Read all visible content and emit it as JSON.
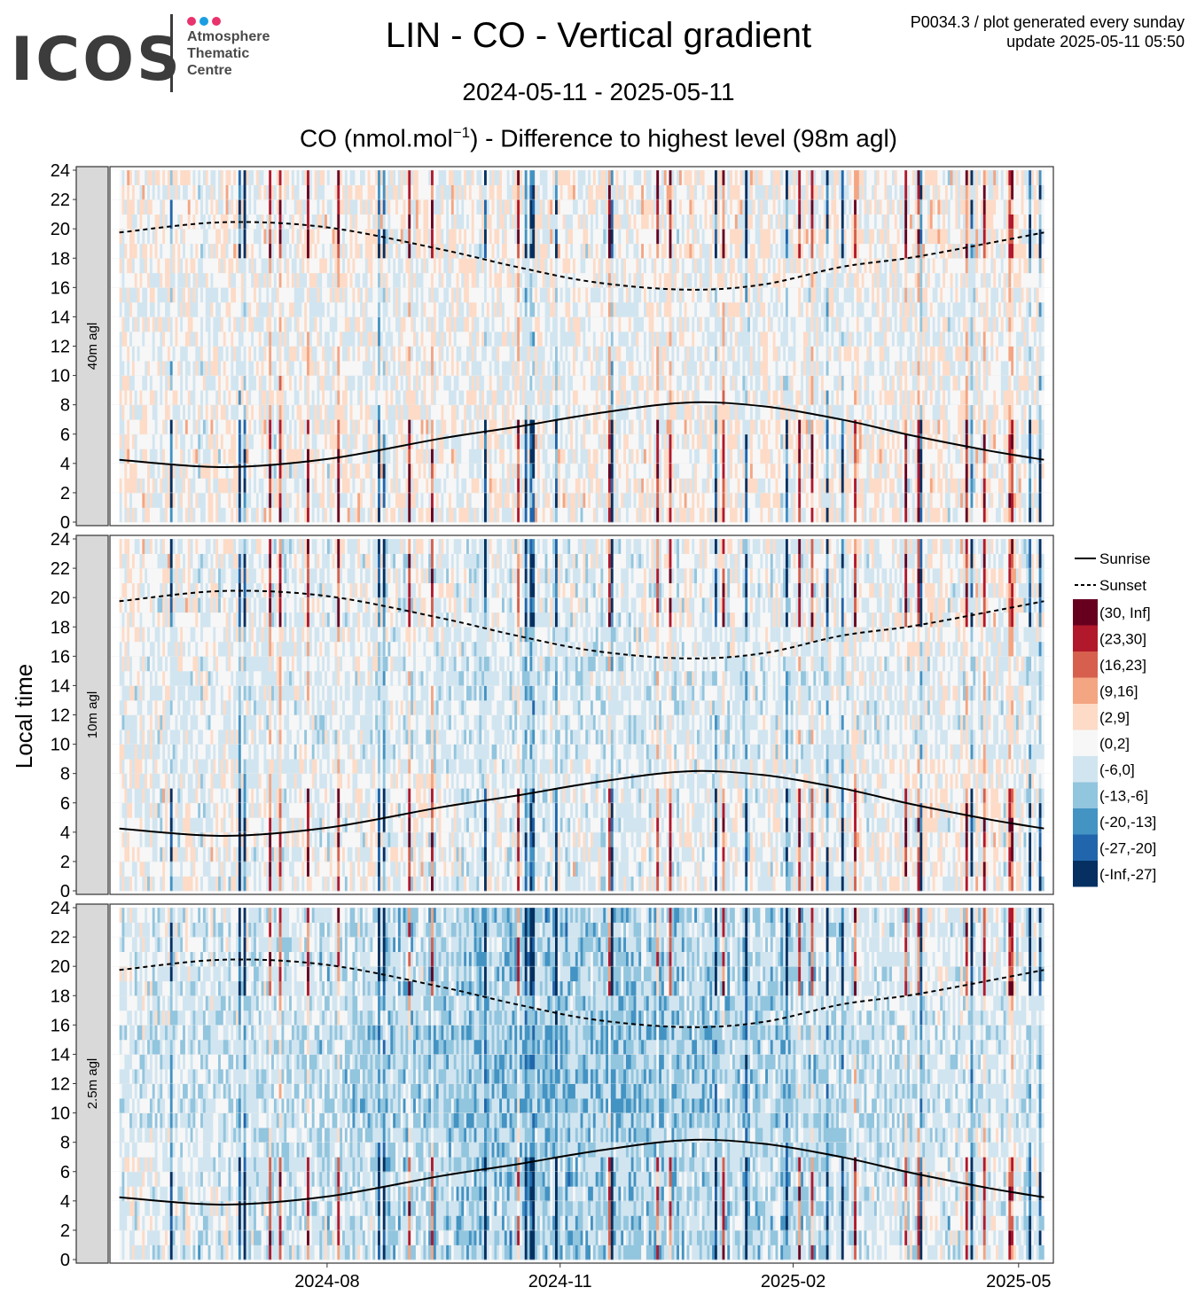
{
  "logo": {
    "wordmark": "ICOS",
    "line1": "Atmosphere",
    "line2": "Thematic",
    "line3": "Centre",
    "dot_colors": [
      "#e8336d",
      "#1a9ee0",
      "#e8336d"
    ]
  },
  "header": {
    "title": "LIN - CO - Vertical gradient",
    "date_range": "2024-05-11 - 2025-05-11",
    "subtitle_pre": "CO (nmol.mol",
    "subtitle_sup": "−1",
    "subtitle_post": ") - Difference to highest level (98m agl)",
    "meta_line1": "P0034.3 / plot generated every sunday",
    "meta_line2": "update  2025-05-11 05:50"
  },
  "chart_data": {
    "type": "heatmap",
    "ylabel": "Local time",
    "x_range": [
      "2024-05-11",
      "2025-05-11"
    ],
    "x_ticks": [
      "2024-08",
      "2024-11",
      "2025-02",
      "2025-05"
    ],
    "y_range": [
      0,
      24
    ],
    "y_ticks": [
      0,
      2,
      4,
      6,
      8,
      10,
      12,
      14,
      16,
      18,
      20,
      22,
      24
    ],
    "grid": true,
    "legend_position": "right",
    "panels": [
      "40m agl",
      "10m agl",
      "2.5m agl"
    ],
    "lines": [
      {
        "name": "Sunrise",
        "style": "solid",
        "points": [
          [
            "2024-05-11",
            4.25
          ],
          [
            "2024-06-21",
            3.75
          ],
          [
            "2024-08-01",
            4.3
          ],
          [
            "2024-09-15",
            5.7
          ],
          [
            "2024-10-15",
            6.5
          ],
          [
            "2024-11-15",
            7.4
          ],
          [
            "2024-12-21",
            8.15
          ],
          [
            "2025-01-20",
            7.9
          ],
          [
            "2025-02-20",
            7.0
          ],
          [
            "2025-03-20",
            5.9
          ],
          [
            "2025-04-20",
            4.85
          ],
          [
            "2025-05-11",
            4.25
          ]
        ]
      },
      {
        "name": "Sunset",
        "style": "dashed",
        "points": [
          [
            "2024-05-11",
            19.75
          ],
          [
            "2024-06-21",
            20.45
          ],
          [
            "2024-08-01",
            20.1
          ],
          [
            "2024-09-15",
            18.6
          ],
          [
            "2024-10-15",
            17.4
          ],
          [
            "2024-11-15",
            16.35
          ],
          [
            "2024-12-21",
            15.85
          ],
          [
            "2025-01-20",
            16.2
          ],
          [
            "2025-02-20",
            17.4
          ],
          [
            "2025-03-20",
            18.05
          ],
          [
            "2025-04-20",
            19.05
          ],
          [
            "2025-05-11",
            19.75
          ]
        ]
      }
    ],
    "color_classes": [
      {
        "label": "(30, Inf]",
        "color": "#67001f"
      },
      {
        "label": "(23,30]",
        "color": "#b2182b"
      },
      {
        "label": "(16,23]",
        "color": "#d6604d"
      },
      {
        "label": "(9,16]",
        "color": "#f4a582"
      },
      {
        "label": "(2,9]",
        "color": "#fddbc7"
      },
      {
        "label": "(0,2]",
        "color": "#f7f7f7"
      },
      {
        "label": "(-6,0]",
        "color": "#d1e5f0"
      },
      {
        "label": "(-13,-6]",
        "color": "#92c5de"
      },
      {
        "label": "(-20,-13]",
        "color": "#4393c3"
      },
      {
        "label": "(-27,-20]",
        "color": "#2166ac"
      },
      {
        "label": "(-Inf,-27]",
        "color": "#053061"
      }
    ]
  }
}
